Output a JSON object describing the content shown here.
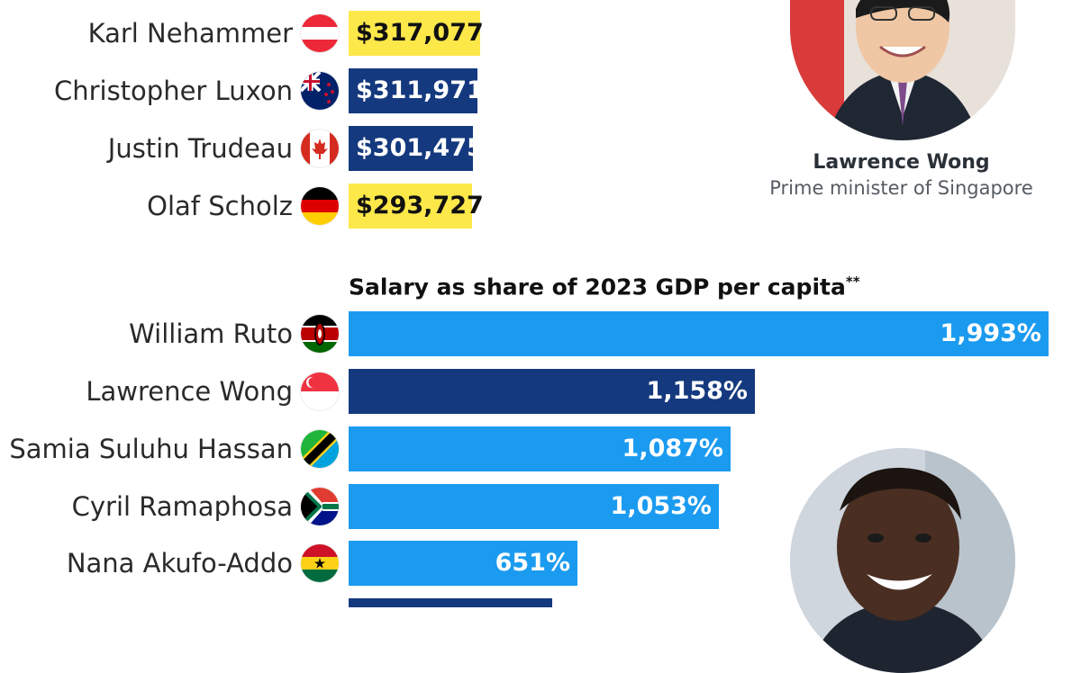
{
  "colors": {
    "dark_blue": "#14397e",
    "yellow": "#fde84a",
    "light_blue": "#1b9bf0"
  },
  "chart_data": [
    {
      "type": "table",
      "title": "",
      "rows": [
        {
          "name": "Karl Nehammer",
          "flag": "austria-flag",
          "salary": "$317,077",
          "highlight": "yellow"
        },
        {
          "name": "Christopher Luxon",
          "flag": "new-zealand-flag",
          "salary": "$311,971",
          "highlight": "dark_blue"
        },
        {
          "name": "Justin Trudeau",
          "flag": "canada-flag",
          "salary": "$301,475",
          "highlight": "dark_blue"
        },
        {
          "name": "Olaf Scholz",
          "flag": "germany-flag",
          "salary": "$293,727",
          "highlight": "yellow"
        }
      ]
    },
    {
      "type": "bar",
      "orientation": "horizontal",
      "title": "Salary as share of 2023 GDP per capita",
      "title_note": "**",
      "categories": [
        "William Ruto",
        "Lawrence Wong",
        "Samia Suluhu Hassan",
        "Cyril Ramaphosa",
        "Nana Akufo-Addo"
      ],
      "flags": [
        "kenya-flag",
        "singapore-flag",
        "tanzania-flag",
        "south-africa-flag",
        "ghana-flag"
      ],
      "values": [
        1993,
        1158,
        1087,
        1053,
        651
      ],
      "labels": [
        "1,993%",
        "1,158%",
        "1,087%",
        "1,053%",
        "651%"
      ],
      "bar_colors": [
        "light_blue",
        "dark_blue",
        "light_blue",
        "light_blue",
        "light_blue"
      ],
      "partial_last_bar": {
        "value": 580,
        "color": "dark_blue"
      },
      "xlim": [
        0,
        1993
      ]
    }
  ],
  "callout": {
    "name": "Lawrence Wong",
    "role": "Prime minister of Singapore",
    "photo_icon": "lawrence-wong-portrait",
    "second_photo_icon": "william-ruto-portrait"
  }
}
